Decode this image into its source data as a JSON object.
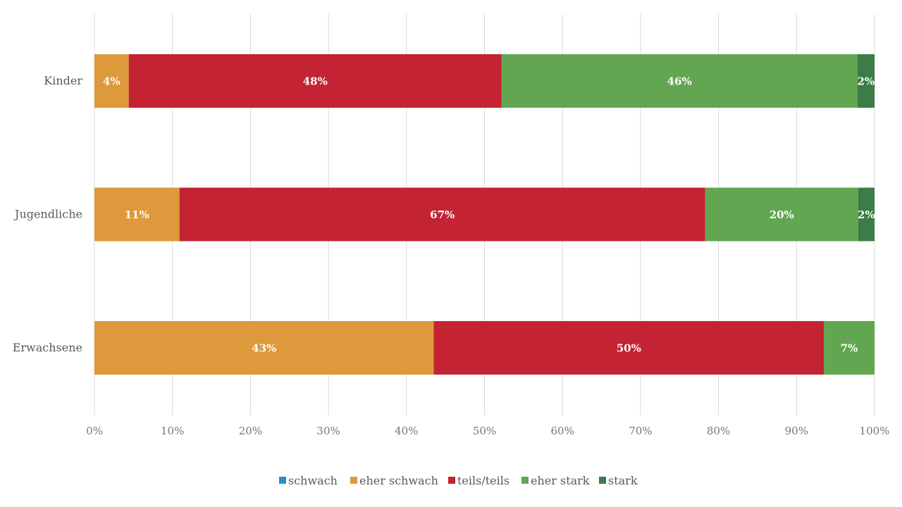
{
  "chart_data": {
    "type": "bar",
    "orientation": "horizontal",
    "stacked": "percent",
    "categories": [
      "Kinder",
      "Jugendliche",
      "Erwachsene"
    ],
    "series": [
      {
        "name": "schwach",
        "values": [
          0,
          0,
          0
        ],
        "labels": [
          "",
          "",
          ""
        ],
        "color": "#2a8fd0"
      },
      {
        "name": "eher schwach",
        "values": [
          4.4,
          10.9,
          43.5
        ],
        "labels": [
          "4%",
          "11%",
          "43%"
        ],
        "color": "#dd993c"
      },
      {
        "name": "teils/teils",
        "values": [
          47.8,
          67.4,
          50.0
        ],
        "labels": [
          "48%",
          "67%",
          "50%"
        ],
        "color": "#c32332"
      },
      {
        "name": "eher stark",
        "values": [
          45.6,
          19.6,
          6.5
        ],
        "labels": [
          "46%",
          "20%",
          "7%"
        ],
        "color": "#62a651"
      },
      {
        "name": "stark",
        "values": [
          2.2,
          2.1,
          0
        ],
        "labels": [
          "2%",
          "2%",
          ""
        ],
        "color": "#3b7c47"
      }
    ],
    "x_ticks": [
      "0%",
      "10%",
      "20%",
      "30%",
      "40%",
      "50%",
      "60%",
      "70%",
      "80%",
      "90%",
      "100%"
    ],
    "xlim": [
      0,
      100
    ],
    "grid": true,
    "legend_position": "bottom"
  }
}
